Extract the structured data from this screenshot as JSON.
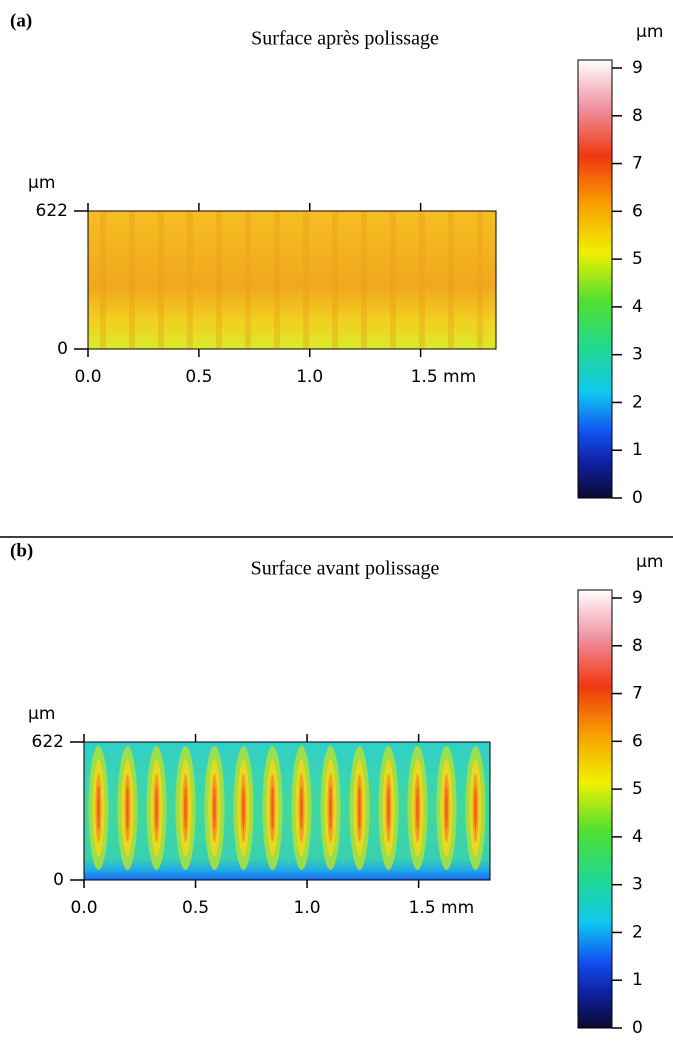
{
  "chart_data": [
    {
      "type": "heatmap",
      "label": "(a)",
      "title": "Surface après polissage",
      "y_unit": "µm",
      "ylim": [
        0,
        622
      ],
      "yticks": [
        0,
        622
      ],
      "xlim": [
        0,
        1.84
      ],
      "xticks": [
        {
          "value": 0,
          "label": "0.0"
        },
        {
          "value": 0.5,
          "label": "0.5"
        },
        {
          "value": 1.0,
          "label": "1.0"
        },
        {
          "value": 1.5,
          "label": "1.5 mm"
        }
      ],
      "colorbar": {
        "label": "µm",
        "lim": [
          0,
          9
        ],
        "ticks": [
          0,
          1,
          2,
          3,
          4,
          5,
          6,
          7,
          8,
          9
        ]
      }
    },
    {
      "type": "heatmap",
      "label": "(b)",
      "title": "Surface avant polissage",
      "y_unit": "µm",
      "ylim": [
        0,
        622
      ],
      "yticks": [
        0,
        622
      ],
      "xlim": [
        0,
        1.82
      ],
      "xticks": [
        {
          "value": 0,
          "label": "0.0"
        },
        {
          "value": 0.5,
          "label": "0.5"
        },
        {
          "value": 1.0,
          "label": "1.0"
        },
        {
          "value": 1.5,
          "label": "1.5 mm"
        }
      ],
      "colorbar": {
        "label": "µm",
        "lim": [
          0,
          9
        ],
        "ticks": [
          0,
          1,
          2,
          3,
          4,
          5,
          6,
          7,
          8,
          9
        ]
      }
    }
  ]
}
